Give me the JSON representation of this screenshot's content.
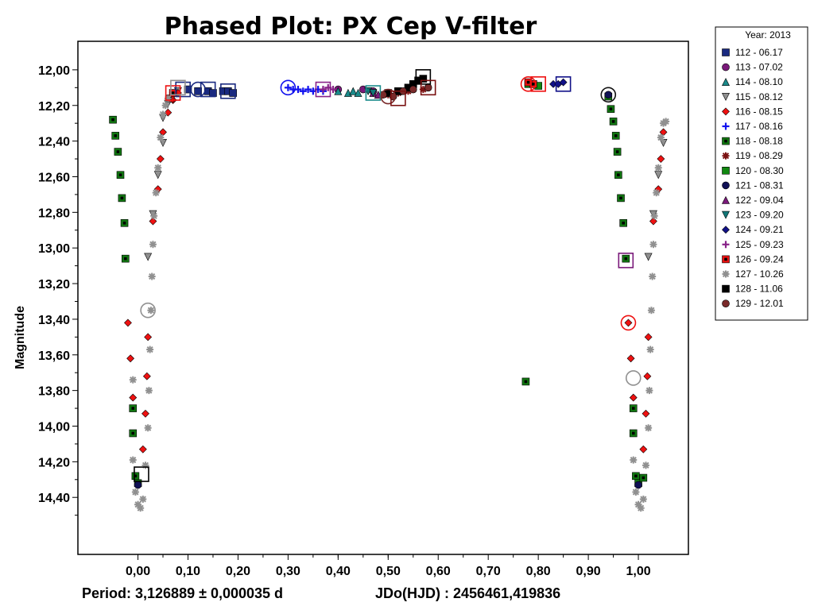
{
  "chart_data": {
    "type": "scatter",
    "title": "Phased Plot: PX Cep V-filter",
    "ylabel": "Magnitude",
    "xlabel": "",
    "xlim": [
      -0.12,
      1.1
    ],
    "ylim": [
      14.72,
      11.84
    ],
    "y_inverted": true,
    "grid": false,
    "x_ticks": [
      0.0,
      0.1,
      0.2,
      0.3,
      0.4,
      0.5,
      0.6,
      0.7,
      0.8,
      0.9,
      1.0
    ],
    "x_tick_labels": [
      "0,00",
      "0,10",
      "0,20",
      "0,30",
      "0,40",
      "0,50",
      "0,60",
      "0,70",
      "0,80",
      "0,90",
      "1,00"
    ],
    "y_ticks": [
      12.0,
      12.2,
      12.4,
      12.6,
      12.8,
      13.0,
      13.2,
      13.4,
      13.6,
      13.8,
      14.0,
      14.2,
      14.4
    ],
    "y_tick_labels": [
      "12,00",
      "12,20",
      "12,40",
      "12,60",
      "12,80",
      "13,00",
      "13,20",
      "13,40",
      "13,60",
      "13,80",
      "14,00",
      "14,20",
      "14,40"
    ],
    "footer_left": "Period: 3,126889 ± 0,000035 d",
    "footer_right": "JDo(HJD) : 2456461,419836",
    "legend_title": "Year: 2013",
    "legend_position": "right-outside",
    "series": [
      {
        "name": "112 - 06.17",
        "marker": "square",
        "color": "#1a2a80",
        "points": [
          [
            0.1,
            12.11
          ],
          [
            0.12,
            12.12
          ],
          [
            0.14,
            12.12
          ],
          [
            0.15,
            12.13
          ],
          [
            0.17,
            12.12
          ],
          [
            0.18,
            12.12
          ],
          [
            0.19,
            12.13
          ]
        ]
      },
      {
        "name": "113 - 07.02",
        "marker": "circle",
        "color": "#7a1a7a",
        "points": [
          [
            0.4,
            12.11
          ],
          [
            0.45,
            12.11
          ],
          [
            0.47,
            12.12
          ]
        ]
      },
      {
        "name": "114 - 08.10",
        "marker": "triangle-up",
        "color": "#1a8a8a",
        "points": [
          [
            0.4,
            12.12
          ],
          [
            0.42,
            12.13
          ],
          [
            0.43,
            12.12
          ],
          [
            0.44,
            12.13
          ]
        ]
      },
      {
        "name": "115 - 08.12",
        "marker": "triangle-down",
        "color": "#909090",
        "points": [
          [
            0.02,
            13.05
          ],
          [
            0.03,
            12.81
          ],
          [
            0.04,
            12.59
          ],
          [
            0.05,
            12.41
          ],
          [
            0.05,
            12.27
          ],
          [
            0.06,
            12.19
          ],
          [
            0.07,
            12.15
          ],
          [
            0.08,
            12.12
          ],
          [
            1.02,
            13.05
          ],
          [
            1.03,
            12.81
          ],
          [
            1.04,
            12.59
          ],
          [
            1.05,
            12.41
          ]
        ]
      },
      {
        "name": "116 - 08.15",
        "marker": "diamond",
        "color": "#ee1111",
        "points": [
          [
            -0.02,
            13.42
          ],
          [
            -0.015,
            13.62
          ],
          [
            -0.01,
            13.84
          ],
          [
            0.01,
            14.13
          ],
          [
            0.015,
            13.93
          ],
          [
            0.018,
            13.72
          ],
          [
            0.02,
            13.5
          ],
          [
            0.03,
            12.85
          ],
          [
            0.04,
            12.67
          ],
          [
            0.045,
            12.5
          ],
          [
            0.05,
            12.35
          ],
          [
            0.06,
            12.24
          ],
          [
            0.07,
            12.17
          ],
          [
            0.08,
            12.13
          ],
          [
            0.98,
            13.42
          ],
          [
            0.985,
            13.62
          ],
          [
            0.99,
            13.84
          ],
          [
            1.01,
            14.13
          ],
          [
            1.015,
            13.93
          ],
          [
            1.018,
            13.72
          ],
          [
            1.02,
            13.5
          ],
          [
            1.03,
            12.85
          ],
          [
            1.04,
            12.67
          ],
          [
            1.045,
            12.5
          ],
          [
            1.05,
            12.35
          ]
        ]
      },
      {
        "name": "117 - 08.16",
        "marker": "plus",
        "color": "#1111ee",
        "points": [
          [
            0.3,
            12.1
          ],
          [
            0.31,
            12.11
          ],
          [
            0.32,
            12.11
          ],
          [
            0.33,
            12.12
          ],
          [
            0.34,
            12.11
          ],
          [
            0.35,
            12.12
          ],
          [
            0.36,
            12.11
          ],
          [
            0.37,
            12.12
          ]
        ]
      },
      {
        "name": "118 - 08.18",
        "marker": "square-dot",
        "color": "#117711",
        "points": [
          [
            -0.05,
            12.28
          ],
          [
            -0.045,
            12.37
          ],
          [
            -0.04,
            12.46
          ],
          [
            -0.035,
            12.59
          ],
          [
            -0.032,
            12.72
          ],
          [
            -0.027,
            12.86
          ],
          [
            -0.025,
            13.06
          ],
          [
            -0.01,
            13.9
          ],
          [
            -0.01,
            14.04
          ],
          [
            -0.005,
            14.28
          ],
          [
            0.0,
            14.32
          ],
          [
            0.94,
            12.15
          ],
          [
            0.945,
            12.22
          ],
          [
            0.95,
            12.29
          ],
          [
            0.955,
            12.37
          ],
          [
            0.958,
            12.46
          ],
          [
            0.96,
            12.59
          ],
          [
            0.965,
            12.72
          ],
          [
            0.97,
            12.86
          ],
          [
            0.975,
            13.06
          ],
          [
            0.99,
            13.9
          ],
          [
            0.99,
            14.04
          ],
          [
            0.995,
            14.28
          ],
          [
            1.0,
            14.32
          ],
          [
            1.01,
            14.29
          ],
          [
            0.775,
            13.75
          ]
        ]
      },
      {
        "name": "119 - 08.29",
        "marker": "star",
        "color": "#7a1111",
        "points": [
          [
            0.5,
            12.14
          ],
          [
            0.52,
            12.13
          ],
          [
            0.54,
            12.12
          ],
          [
            0.55,
            12.11
          ],
          [
            0.57,
            12.11
          ],
          [
            0.58,
            12.1
          ]
        ]
      },
      {
        "name": "120 - 08.30",
        "marker": "square",
        "color": "#118811",
        "points": [
          [
            0.8,
            12.09
          ],
          [
            0.78,
            12.08
          ]
        ]
      },
      {
        "name": "121 - 08.31",
        "marker": "circle",
        "color": "#111155",
        "points": [
          [
            0.94,
            12.14
          ],
          [
            0.0,
            14.33
          ],
          [
            1.0,
            14.33
          ]
        ]
      },
      {
        "name": "122 - 09.04",
        "marker": "triangle-up",
        "color": "#7a1a7a",
        "points": [
          [
            0.47,
            12.13
          ],
          [
            0.48,
            12.14
          ]
        ]
      },
      {
        "name": "123 - 09.20",
        "marker": "triangle-down",
        "color": "#117777",
        "points": [
          [
            0.46,
            12.12
          ],
          [
            0.47,
            12.13
          ]
        ]
      },
      {
        "name": "124 - 09.21",
        "marker": "diamond",
        "color": "#111188",
        "points": [
          [
            0.83,
            12.08
          ],
          [
            0.84,
            12.08
          ],
          [
            0.85,
            12.07
          ]
        ]
      },
      {
        "name": "125 - 09.23",
        "marker": "plus",
        "color": "#882288",
        "points": [
          [
            0.37,
            12.11
          ],
          [
            0.38,
            12.1
          ],
          [
            0.39,
            12.11
          ]
        ]
      },
      {
        "name": "126 - 09.24",
        "marker": "square-dot",
        "color": "#ee1111",
        "points": [
          [
            0.065,
            12.16
          ],
          [
            0.07,
            12.13
          ],
          [
            0.79,
            12.08
          ],
          [
            0.78,
            12.07
          ]
        ]
      },
      {
        "name": "127 - 10.26",
        "marker": "star",
        "color": "#909090",
        "points": [
          [
            -0.01,
            13.74
          ],
          [
            -0.01,
            14.19
          ],
          [
            -0.005,
            14.37
          ],
          [
            0.0,
            14.44
          ],
          [
            0.005,
            14.46
          ],
          [
            0.01,
            14.41
          ],
          [
            0.015,
            14.22
          ],
          [
            0.02,
            14.01
          ],
          [
            0.022,
            13.8
          ],
          [
            0.024,
            13.57
          ],
          [
            0.026,
            13.35
          ],
          [
            0.028,
            13.16
          ],
          [
            0.03,
            12.98
          ],
          [
            0.032,
            12.82
          ],
          [
            0.036,
            12.69
          ],
          [
            0.04,
            12.55
          ],
          [
            0.045,
            12.38
          ],
          [
            0.05,
            12.25
          ],
          [
            0.055,
            12.2
          ],
          [
            0.06,
            12.16
          ],
          [
            0.99,
            14.19
          ],
          [
            0.995,
            14.37
          ],
          [
            1.0,
            14.44
          ],
          [
            1.005,
            14.46
          ],
          [
            1.01,
            14.41
          ],
          [
            1.015,
            14.22
          ],
          [
            1.02,
            14.01
          ],
          [
            1.022,
            13.8
          ],
          [
            1.024,
            13.57
          ],
          [
            1.026,
            13.35
          ],
          [
            1.028,
            13.16
          ],
          [
            1.03,
            12.98
          ],
          [
            1.032,
            12.82
          ],
          [
            1.036,
            12.69
          ],
          [
            1.04,
            12.55
          ],
          [
            1.045,
            12.38
          ],
          [
            1.05,
            12.3
          ],
          [
            1.055,
            12.29
          ]
        ]
      },
      {
        "name": "128 - 11.06",
        "marker": "square",
        "color": "#000000",
        "points": [
          [
            0.5,
            12.13
          ],
          [
            0.52,
            12.12
          ],
          [
            0.54,
            12.1
          ],
          [
            0.55,
            12.08
          ],
          [
            0.56,
            12.06
          ],
          [
            0.57,
            12.05
          ]
        ]
      },
      {
        "name": "129 - 12.01",
        "marker": "circle",
        "color": "#7a2a2a",
        "points": [
          [
            0.49,
            12.14
          ],
          [
            0.51,
            12.15
          ],
          [
            0.53,
            12.12
          ],
          [
            0.55,
            12.11
          ],
          [
            0.58,
            12.1
          ]
        ]
      }
    ]
  }
}
